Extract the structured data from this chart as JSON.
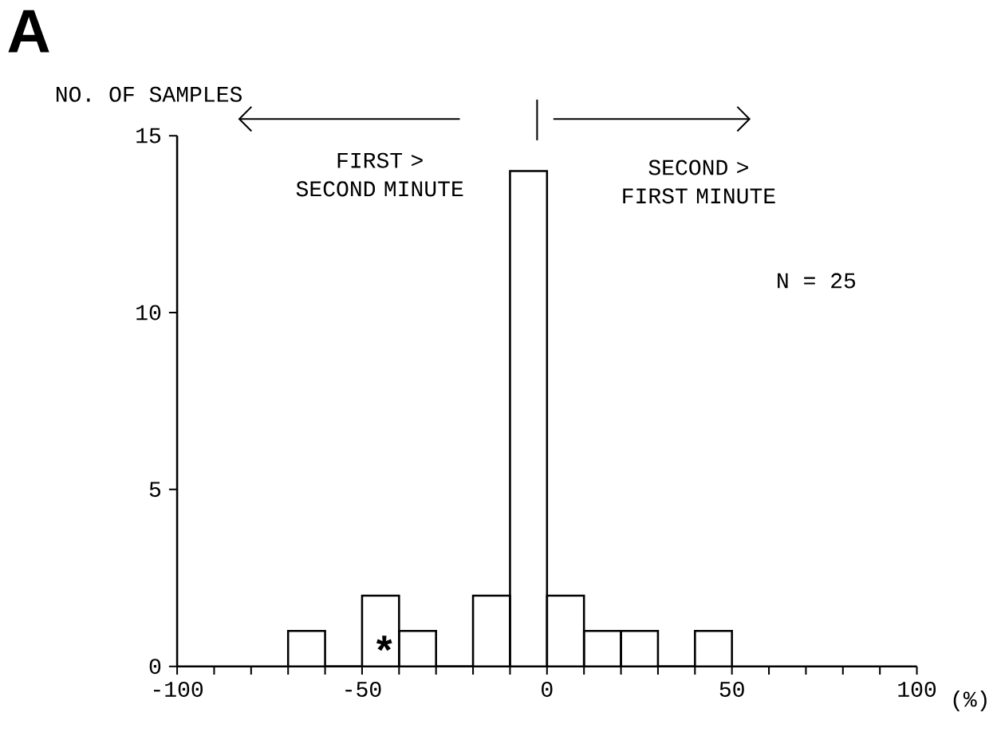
{
  "chart_data": {
    "type": "histogram",
    "title": "A",
    "ylabel": "NO. OF SAMPLES",
    "xlabel": "(%)",
    "bins": [
      -70,
      -60,
      -50,
      -40,
      -30,
      -20,
      -10,
      0,
      10,
      20,
      30,
      40,
      50
    ],
    "values": [
      1,
      0,
      2,
      1,
      0,
      2,
      14,
      2,
      1,
      1,
      0,
      1
    ],
    "color": "#000000",
    "xlim": [
      -100,
      100
    ],
    "ylim": [
      0,
      15
    ],
    "xticks": [
      -100,
      {
        "value": -90,
        "label": null
      },
      {
        "value": -80,
        "label": null
      },
      {
        "value": -70,
        "label": null
      },
      {
        "value": -60,
        "label": null
      },
      -50,
      {
        "value": -40,
        "label": null
      },
      {
        "value": -30,
        "label": null
      },
      {
        "value": -20,
        "label": null
      },
      {
        "value": -10,
        "label": null
      },
      0,
      {
        "value": 10,
        "label": null
      },
      {
        "value": 20,
        "label": null
      },
      {
        "value": 30,
        "label": null
      },
      {
        "value": 40,
        "label": null
      },
      50,
      {
        "value": 60,
        "label": null
      },
      {
        "value": 70,
        "label": null
      },
      {
        "value": 80,
        "label": null
      },
      {
        "value": 90,
        "label": null
      },
      100
    ],
    "yticks": [
      0,
      5,
      10,
      15
    ],
    "annotations": [
      "FIRST > SECOND MINUTE",
      "SECOND > FIRST MINUTE",
      "N = 25",
      "*"
    ],
    "grid": false
  }
}
